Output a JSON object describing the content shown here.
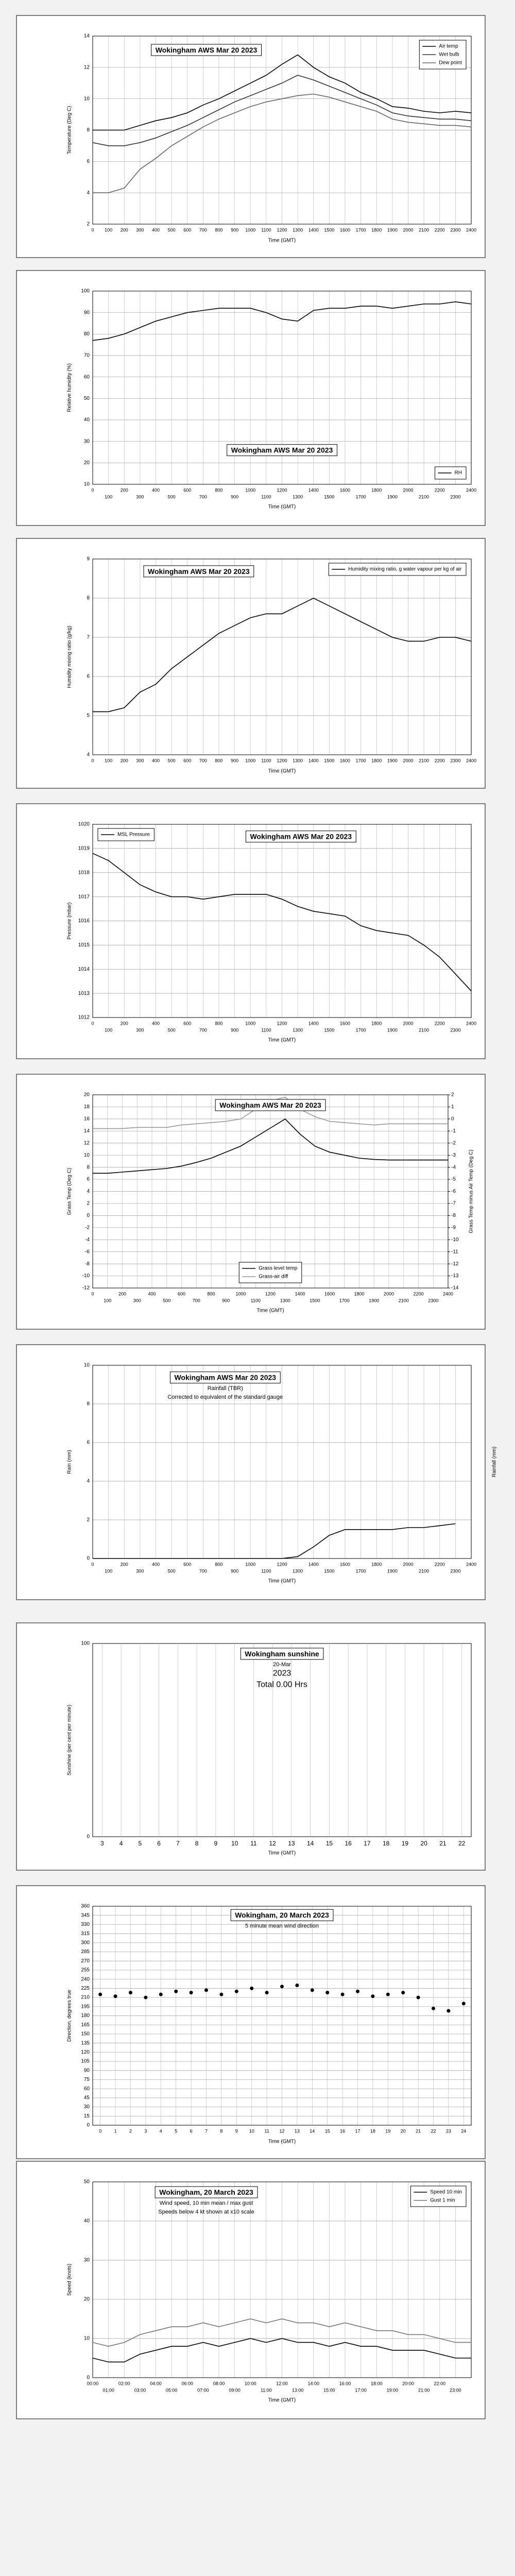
{
  "chart_data": [
    {
      "type": "line",
      "title": "Wokingham AWS Mar 20 2023",
      "xlabel": "Time (GMT)",
      "ylabel": "Temperature (Deg C)",
      "x": [
        0,
        100,
        200,
        300,
        400,
        500,
        600,
        700,
        800,
        900,
        1000,
        1100,
        1200,
        1300,
        1400,
        1500,
        1600,
        1700,
        1800,
        1900,
        2000,
        2100,
        2200,
        2300,
        2400
      ],
      "xlim": [
        0,
        2400
      ],
      "xticks": [
        0,
        100,
        200,
        300,
        400,
        500,
        600,
        700,
        800,
        900,
        1000,
        1100,
        1200,
        1300,
        1400,
        1500,
        1600,
        1700,
        1800,
        1900,
        2000,
        2100,
        2200,
        2300,
        2400
      ],
      "ylim": [
        2,
        14
      ],
      "yticks": [
        2,
        4,
        6,
        8,
        10,
        12,
        14
      ],
      "grid": true,
      "legend": "upper right",
      "series": [
        {
          "name": "Air temp",
          "color": "#000000",
          "values": [
            8,
            8,
            8,
            8.3,
            8.6,
            8.8,
            9.1,
            9.6,
            10,
            10.5,
            11,
            11.5,
            12.2,
            12.8,
            12,
            11.4,
            11,
            10.4,
            10,
            9.5,
            9.4,
            9.2,
            9.1,
            9.2,
            9.1
          ]
        },
        {
          "name": "Wet bulb",
          "color": "#333333",
          "values": [
            7.2,
            7,
            7,
            7.2,
            7.5,
            7.9,
            8.3,
            8.8,
            9.3,
            9.8,
            10.2,
            10.6,
            11,
            11.5,
            11.2,
            10.8,
            10.4,
            10,
            9.6,
            9.1,
            8.9,
            8.8,
            8.7,
            8.7,
            8.6
          ]
        },
        {
          "name": "Dew point",
          "color": "#666666",
          "values": [
            4,
            4,
            4.3,
            5.5,
            6.2,
            7,
            7.6,
            8.2,
            8.7,
            9.1,
            9.5,
            9.8,
            10,
            10.2,
            10.3,
            10.1,
            9.8,
            9.5,
            9.2,
            8.7,
            8.5,
            8.4,
            8.3,
            8.3,
            8.2
          ]
        }
      ]
    },
    {
      "type": "line",
      "title": "Wokingham AWS Mar 20 2023",
      "xlabel": "Time (GMT)",
      "ylabel": "Relative humidity (%)",
      "x": [
        0,
        100,
        200,
        300,
        400,
        500,
        600,
        700,
        800,
        900,
        1000,
        1100,
        1200,
        1300,
        1400,
        1500,
        1600,
        1700,
        1800,
        1900,
        2000,
        2100,
        2200,
        2300,
        2400
      ],
      "xlim": [
        0,
        2400
      ],
      "xticks": [
        0,
        100,
        200,
        300,
        400,
        500,
        600,
        700,
        800,
        900,
        1000,
        1100,
        1200,
        1300,
        1400,
        1500,
        1600,
        1700,
        1800,
        1900,
        2000,
        2100,
        2200,
        2300,
        2400
      ],
      "ylim": [
        10,
        100
      ],
      "yticks": [
        10,
        20,
        30,
        40,
        50,
        60,
        70,
        80,
        90,
        100
      ],
      "grid": true,
      "legend": "lower right",
      "series": [
        {
          "name": "RH",
          "color": "#000000",
          "values": [
            77,
            78,
            80,
            83,
            86,
            88,
            90,
            91,
            92,
            92,
            92,
            90,
            87,
            86,
            91,
            92,
            92,
            93,
            93,
            92,
            93,
            94,
            94,
            95,
            94
          ]
        }
      ]
    },
    {
      "type": "line",
      "title": "Wokingham AWS Mar 20 2023",
      "xlabel": "Time (GMT)",
      "ylabel": "Humidity mixing ratio (g/kg)",
      "x": [
        0,
        100,
        200,
        300,
        400,
        500,
        600,
        700,
        800,
        900,
        1000,
        1100,
        1200,
        1300,
        1400,
        1500,
        1600,
        1700,
        1800,
        1900,
        2000,
        2100,
        2200,
        2300,
        2400
      ],
      "xlim": [
        0,
        2400
      ],
      "xticks": [
        0,
        100,
        200,
        300,
        400,
        500,
        600,
        700,
        800,
        900,
        1000,
        1100,
        1200,
        1300,
        1400,
        1500,
        1600,
        1700,
        1800,
        1900,
        2000,
        2100,
        2200,
        2300,
        2400
      ],
      "ylim": [
        4,
        9
      ],
      "yticks": [
        4,
        5,
        6,
        7,
        8,
        9
      ],
      "grid": true,
      "legend": "upper right",
      "series": [
        {
          "name": "Humidity mixing ratio, g water vapour per kg of air",
          "color": "#000000",
          "values": [
            5.1,
            5.1,
            5.2,
            5.6,
            5.8,
            6.2,
            6.5,
            6.8,
            7.1,
            7.3,
            7.5,
            7.6,
            7.6,
            7.8,
            8,
            7.8,
            7.6,
            7.4,
            7.2,
            7,
            6.9,
            6.9,
            7,
            7,
            6.9
          ]
        }
      ]
    },
    {
      "type": "line",
      "title": "Wokingham AWS Mar 20 2023",
      "xlabel": "Time (GMT)",
      "ylabel": "Pressure (mbar)",
      "x": [
        0,
        100,
        200,
        300,
        400,
        500,
        600,
        700,
        800,
        900,
        1000,
        1100,
        1200,
        1300,
        1400,
        1500,
        1600,
        1700,
        1800,
        1900,
        2000,
        2100,
        2200,
        2300,
        2400
      ],
      "xlim": [
        0,
        2400
      ],
      "xticks": [
        0,
        100,
        200,
        300,
        400,
        500,
        600,
        700,
        800,
        900,
        1000,
        1100,
        1200,
        1300,
        1400,
        1500,
        1600,
        1700,
        1800,
        1900,
        2000,
        2100,
        2200,
        2300,
        2400
      ],
      "ylim": [
        1012,
        1020
      ],
      "yticks": [
        1012,
        1013,
        1014,
        1015,
        1016,
        1017,
        1018,
        1019,
        1020
      ],
      "grid": true,
      "legend": "upper left",
      "series": [
        {
          "name": "MSL Pressure",
          "color": "#000000",
          "values": [
            1018.8,
            1018.5,
            1018,
            1017.5,
            1017.2,
            1017,
            1017,
            1016.9,
            1017,
            1017.1,
            1017.1,
            1017.1,
            1016.9,
            1016.6,
            1016.4,
            1016.3,
            1016.2,
            1015.8,
            1015.6,
            1015.5,
            1015.4,
            1015,
            1014.5,
            1013.8,
            1013.1
          ]
        }
      ]
    },
    {
      "type": "line",
      "title": "Wokingham AWS Mar 20 2023",
      "xlabel": "Time (GMT)",
      "ylabel": "Grass Temp (Deg C)",
      "y2label": "Grass Temp minus Air Temp (Deg C)",
      "x": [
        0,
        100,
        200,
        300,
        400,
        500,
        600,
        700,
        800,
        900,
        1000,
        1100,
        1200,
        1300,
        1400,
        1500,
        1600,
        1700,
        1800,
        1900,
        2000,
        2100,
        2200,
        2300,
        2400
      ],
      "xlim": [
        0,
        2400
      ],
      "xticks": [
        0,
        100,
        200,
        300,
        400,
        500,
        600,
        700,
        800,
        900,
        1000,
        1100,
        1200,
        1300,
        1400,
        1500,
        1600,
        1700,
        1800,
        1900,
        2000,
        2100,
        2200,
        2300,
        2400
      ],
      "ylim": [
        -12,
        20
      ],
      "yticks": [
        -12,
        -10,
        -8,
        -6,
        -4,
        -2,
        0,
        2,
        4,
        6,
        8,
        10,
        12,
        14,
        16,
        18,
        20
      ],
      "y2lim": [
        -14,
        2
      ],
      "y2ticks": [
        -14,
        -13,
        -12,
        -11,
        -10,
        -9,
        -8,
        -7,
        -6,
        -5,
        -4,
        -3,
        -2,
        -1,
        0,
        1,
        2
      ],
      "grid": true,
      "legend": "lower center",
      "series": [
        {
          "name": "Grass level temp",
          "color": "#000000",
          "values": [
            7,
            7,
            7.2,
            7.4,
            7.6,
            7.8,
            8.2,
            8.8,
            9.5,
            10.5,
            11.5,
            13,
            14.5,
            16,
            13.5,
            11.5,
            10.5,
            10,
            9.5,
            9.3,
            9.2,
            9.2,
            9.2,
            9.2,
            9.2
          ]
        },
        {
          "name": "Grass-air diff",
          "color": "#999999",
          "axis": "y2",
          "values": [
            -0.8,
            -0.8,
            -0.8,
            -0.7,
            -0.7,
            -0.7,
            -0.5,
            -0.4,
            -0.3,
            -0.2,
            0,
            0.8,
            1.5,
            1.8,
            0.8,
            0.2,
            -0.2,
            -0.3,
            -0.4,
            -0.5,
            -0.4,
            -0.4,
            -0.4,
            -0.4,
            -0.4
          ]
        }
      ]
    },
    {
      "type": "line",
      "title": "Wokingham AWS Mar 20 2023",
      "subtitle": "Rainfall (TBR)",
      "annotations": [
        "Corrected to equivalent of the standard gauge"
      ],
      "xlabel": "Time (GMT)",
      "ylabel": "Rain (mm)",
      "y2label": "Rainfall (mm)",
      "x": [
        0,
        100,
        200,
        300,
        400,
        500,
        600,
        700,
        800,
        900,
        1000,
        1100,
        1200,
        1300,
        1400,
        1500,
        1600,
        1700,
        1800,
        1900,
        2000,
        2100,
        2200,
        2300,
        2400
      ],
      "xlim": [
        0,
        2400
      ],
      "xticks": [
        0,
        100,
        200,
        300,
        400,
        500,
        600,
        700,
        800,
        900,
        1000,
        1100,
        1200,
        1300,
        1400,
        1500,
        1600,
        1700,
        1800,
        1900,
        2000,
        2100,
        2200,
        2300,
        2400
      ],
      "ylim": [
        0,
        10
      ],
      "yticks": [
        0,
        2,
        4,
        6,
        8,
        10
      ],
      "grid": true,
      "series": [
        {
          "color": "#000000",
          "values": [
            0,
            0,
            0,
            0,
            0,
            0,
            0,
            0,
            0,
            0,
            0,
            0,
            0,
            0.1,
            0.6,
            1.2,
            1.5,
            1.5,
            1.5,
            1.5,
            1.6,
            1.6,
            1.7,
            1.8,
            null
          ]
        }
      ]
    },
    {
      "type": "bar",
      "title": "Wokingham sunshine",
      "subtitle": "20-Mar",
      "annotations": [
        "2023",
        "Total 0.00 Hrs"
      ],
      "xlabel": "Time (GMT)",
      "ylabel": "Sunshine (per cent per minute)",
      "categories": [
        "3",
        "4",
        "5",
        "6",
        "7",
        "8",
        "9",
        "10",
        "11",
        "12",
        "13",
        "14",
        "15",
        "16",
        "17",
        "18",
        "19",
        "20",
        "21",
        "22"
      ],
      "values": [
        0,
        0,
        0,
        0,
        0,
        0,
        0,
        0,
        0,
        0,
        0,
        0,
        0,
        0,
        0,
        0,
        0,
        0,
        0,
        0
      ],
      "color": "#f0c000",
      "ylim": [
        0,
        100
      ],
      "yticks": [
        0,
        100
      ],
      "grid": true
    },
    {
      "type": "scatter",
      "title": "Wokingham,  20 March 2023",
      "subtitle": "5 minute mean wind direction",
      "xlabel": "Time (GMT)",
      "ylabel": "Direction, degrees true",
      "color": "#000000",
      "x": [
        0,
        1,
        2,
        3,
        4,
        5,
        6,
        7,
        8,
        9,
        10,
        11,
        12,
        13,
        14,
        15,
        16,
        17,
        18,
        19,
        20,
        21,
        22,
        23,
        24
      ],
      "values": [
        215,
        212,
        218,
        210,
        215,
        220,
        218,
        222,
        215,
        220,
        225,
        218,
        228,
        230,
        222,
        218,
        215,
        220,
        212,
        215,
        218,
        210,
        192,
        188,
        200
      ],
      "xlim": [
        -0.5,
        24.5
      ],
      "xticks": [
        0,
        1,
        2,
        3,
        4,
        5,
        6,
        7,
        8,
        9,
        10,
        11,
        12,
        13,
        14,
        15,
        16,
        17,
        18,
        19,
        20,
        21,
        22,
        23,
        24
      ],
      "ylim": [
        0,
        360
      ],
      "yticks": [
        0,
        15,
        30,
        45,
        60,
        75,
        90,
        105,
        120,
        135,
        150,
        165,
        180,
        195,
        210,
        225,
        240,
        255,
        270,
        285,
        300,
        315,
        330,
        345,
        360
      ],
      "grid": true
    },
    {
      "type": "line",
      "title": "Wokingham,  20 March 2023",
      "annotations": [
        "Wind speed, 10 min mean / max gust",
        "Speeds below 4 kt shown at x10 scale"
      ],
      "xlabel": "Time (GMT)",
      "ylabel": "Speed (knots)",
      "legend": "upper right",
      "x": [
        0,
        1,
        2,
        3,
        4,
        5,
        6,
        7,
        8,
        9,
        10,
        11,
        12,
        13,
        14,
        15,
        16,
        17,
        18,
        19,
        20,
        21,
        22,
        23,
        24
      ],
      "xlim": [
        0,
        24
      ],
      "xticks": [
        {
          "value": 0,
          "label": "00:00"
        },
        {
          "value": 1,
          "label": "01:00"
        },
        {
          "value": 2,
          "label": "02:00"
        },
        {
          "value": 3,
          "label": "03:00"
        },
        {
          "value": 4,
          "label": "04:00"
        },
        {
          "value": 5,
          "label": "05:00"
        },
        {
          "value": 6,
          "label": "06:00"
        },
        {
          "value": 7,
          "label": "07:00"
        },
        {
          "value": 8,
          "label": "08:00"
        },
        {
          "value": 9,
          "label": "09:00"
        },
        {
          "value": 10,
          "label": "10:00"
        },
        {
          "value": 11,
          "label": "11:00"
        },
        {
          "value": 12,
          "label": "12:00"
        },
        {
          "value": 13,
          "label": "13:00"
        },
        {
          "value": 14,
          "label": "14:00"
        },
        {
          "value": 15,
          "label": "15:00"
        },
        {
          "value": 16,
          "label": "16:00"
        },
        {
          "value": 17,
          "label": "17:00"
        },
        {
          "value": 18,
          "label": "18:00"
        },
        {
          "value": 19,
          "label": "19:00"
        },
        {
          "value": 20,
          "label": "20:00"
        },
        {
          "value": 21,
          "label": "21:00"
        },
        {
          "value": 22,
          "label": "22:00"
        },
        {
          "value": 23,
          "label": "23:00"
        }
      ],
      "ylim": [
        0,
        50
      ],
      "yticks": [
        0,
        10,
        20,
        30,
        40,
        50
      ],
      "grid": true,
      "series": [
        {
          "name": "Speed 10 min",
          "color": "#000000",
          "values": [
            5,
            4,
            4,
            6,
            7,
            8,
            8,
            9,
            8,
            9,
            10,
            9,
            10,
            9,
            9,
            8,
            9,
            8,
            8,
            7,
            7,
            7,
            6,
            5,
            5
          ]
        },
        {
          "name": "Gust 1 min",
          "color": "#777777",
          "values": [
            9,
            8,
            9,
            11,
            12,
            13,
            13,
            14,
            13,
            14,
            15,
            14,
            15,
            14,
            14,
            13,
            14,
            13,
            12,
            12,
            11,
            11,
            10,
            9,
            9
          ]
        }
      ]
    }
  ]
}
